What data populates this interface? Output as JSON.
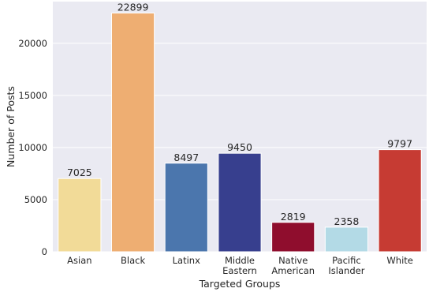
{
  "chart_data": {
    "type": "bar",
    "categories": [
      [
        "Asian"
      ],
      [
        "Black"
      ],
      [
        "Latinx"
      ],
      [
        "Middle",
        "Eastern"
      ],
      [
        "Native",
        "American"
      ],
      [
        "Pacific",
        "Islander"
      ],
      [
        "White"
      ]
    ],
    "values": [
      7025,
      22899,
      8497,
      9450,
      2819,
      2358,
      9797
    ],
    "data_labels": [
      "7025",
      "22899",
      "8497",
      "9450",
      "2819",
      "2358",
      "9797"
    ],
    "colors": [
      "#f2db98",
      "#eeae72",
      "#4b76ad",
      "#373f8e",
      "#8f0d2d",
      "#b3dae6",
      "#c63b33"
    ],
    "title": "",
    "xlabel": "Targeted Groups",
    "ylabel": "Number of Posts",
    "ylim": [
      0,
      24000
    ],
    "yticks": [
      0,
      5000,
      10000,
      15000,
      20000
    ],
    "ytick_labels": [
      "0",
      "5000",
      "10000",
      "15000",
      "20000"
    ],
    "grid": true,
    "background": "#eaeaf2",
    "grid_color": "#ffffff"
  }
}
